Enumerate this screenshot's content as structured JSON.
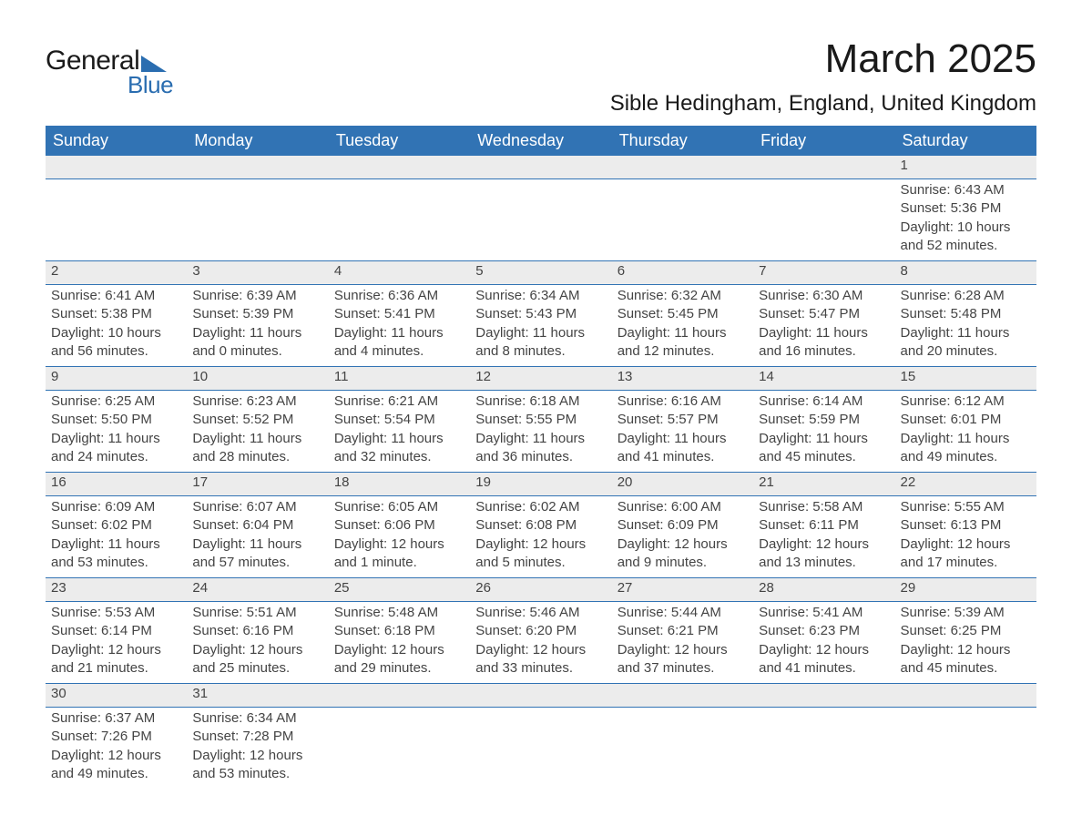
{
  "logo": {
    "word1": "General",
    "word2": "Blue",
    "accent_color": "#2a6db0"
  },
  "title": "March 2025",
  "location": "Sible Hedingham, England, United Kingdom",
  "header_bg": "#3173b4",
  "band_bg": "#ececec",
  "day_names": [
    "Sunday",
    "Monday",
    "Tuesday",
    "Wednesday",
    "Thursday",
    "Friday",
    "Saturday"
  ],
  "labels": {
    "sunrise": "Sunrise:",
    "sunset": "Sunset:",
    "daylight": "Daylight:"
  },
  "weeks": [
    [
      null,
      null,
      null,
      null,
      null,
      null,
      {
        "n": "1",
        "sunrise": "6:43 AM",
        "sunset": "5:36 PM",
        "daylight": "10 hours and 52 minutes."
      }
    ],
    [
      {
        "n": "2",
        "sunrise": "6:41 AM",
        "sunset": "5:38 PM",
        "daylight": "10 hours and 56 minutes."
      },
      {
        "n": "3",
        "sunrise": "6:39 AM",
        "sunset": "5:39 PM",
        "daylight": "11 hours and 0 minutes."
      },
      {
        "n": "4",
        "sunrise": "6:36 AM",
        "sunset": "5:41 PM",
        "daylight": "11 hours and 4 minutes."
      },
      {
        "n": "5",
        "sunrise": "6:34 AM",
        "sunset": "5:43 PM",
        "daylight": "11 hours and 8 minutes."
      },
      {
        "n": "6",
        "sunrise": "6:32 AM",
        "sunset": "5:45 PM",
        "daylight": "11 hours and 12 minutes."
      },
      {
        "n": "7",
        "sunrise": "6:30 AM",
        "sunset": "5:47 PM",
        "daylight": "11 hours and 16 minutes."
      },
      {
        "n": "8",
        "sunrise": "6:28 AM",
        "sunset": "5:48 PM",
        "daylight": "11 hours and 20 minutes."
      }
    ],
    [
      {
        "n": "9",
        "sunrise": "6:25 AM",
        "sunset": "5:50 PM",
        "daylight": "11 hours and 24 minutes."
      },
      {
        "n": "10",
        "sunrise": "6:23 AM",
        "sunset": "5:52 PM",
        "daylight": "11 hours and 28 minutes."
      },
      {
        "n": "11",
        "sunrise": "6:21 AM",
        "sunset": "5:54 PM",
        "daylight": "11 hours and 32 minutes."
      },
      {
        "n": "12",
        "sunrise": "6:18 AM",
        "sunset": "5:55 PM",
        "daylight": "11 hours and 36 minutes."
      },
      {
        "n": "13",
        "sunrise": "6:16 AM",
        "sunset": "5:57 PM",
        "daylight": "11 hours and 41 minutes."
      },
      {
        "n": "14",
        "sunrise": "6:14 AM",
        "sunset": "5:59 PM",
        "daylight": "11 hours and 45 minutes."
      },
      {
        "n": "15",
        "sunrise": "6:12 AM",
        "sunset": "6:01 PM",
        "daylight": "11 hours and 49 minutes."
      }
    ],
    [
      {
        "n": "16",
        "sunrise": "6:09 AM",
        "sunset": "6:02 PM",
        "daylight": "11 hours and 53 minutes."
      },
      {
        "n": "17",
        "sunrise": "6:07 AM",
        "sunset": "6:04 PM",
        "daylight": "11 hours and 57 minutes."
      },
      {
        "n": "18",
        "sunrise": "6:05 AM",
        "sunset": "6:06 PM",
        "daylight": "12 hours and 1 minute."
      },
      {
        "n": "19",
        "sunrise": "6:02 AM",
        "sunset": "6:08 PM",
        "daylight": "12 hours and 5 minutes."
      },
      {
        "n": "20",
        "sunrise": "6:00 AM",
        "sunset": "6:09 PM",
        "daylight": "12 hours and 9 minutes."
      },
      {
        "n": "21",
        "sunrise": "5:58 AM",
        "sunset": "6:11 PM",
        "daylight": "12 hours and 13 minutes."
      },
      {
        "n": "22",
        "sunrise": "5:55 AM",
        "sunset": "6:13 PM",
        "daylight": "12 hours and 17 minutes."
      }
    ],
    [
      {
        "n": "23",
        "sunrise": "5:53 AM",
        "sunset": "6:14 PM",
        "daylight": "12 hours and 21 minutes."
      },
      {
        "n": "24",
        "sunrise": "5:51 AM",
        "sunset": "6:16 PM",
        "daylight": "12 hours and 25 minutes."
      },
      {
        "n": "25",
        "sunrise": "5:48 AM",
        "sunset": "6:18 PM",
        "daylight": "12 hours and 29 minutes."
      },
      {
        "n": "26",
        "sunrise": "5:46 AM",
        "sunset": "6:20 PM",
        "daylight": "12 hours and 33 minutes."
      },
      {
        "n": "27",
        "sunrise": "5:44 AM",
        "sunset": "6:21 PM",
        "daylight": "12 hours and 37 minutes."
      },
      {
        "n": "28",
        "sunrise": "5:41 AM",
        "sunset": "6:23 PM",
        "daylight": "12 hours and 41 minutes."
      },
      {
        "n": "29",
        "sunrise": "5:39 AM",
        "sunset": "6:25 PM",
        "daylight": "12 hours and 45 minutes."
      }
    ],
    [
      {
        "n": "30",
        "sunrise": "6:37 AM",
        "sunset": "7:26 PM",
        "daylight": "12 hours and 49 minutes."
      },
      {
        "n": "31",
        "sunrise": "6:34 AM",
        "sunset": "7:28 PM",
        "daylight": "12 hours and 53 minutes."
      },
      null,
      null,
      null,
      null,
      null
    ]
  ]
}
